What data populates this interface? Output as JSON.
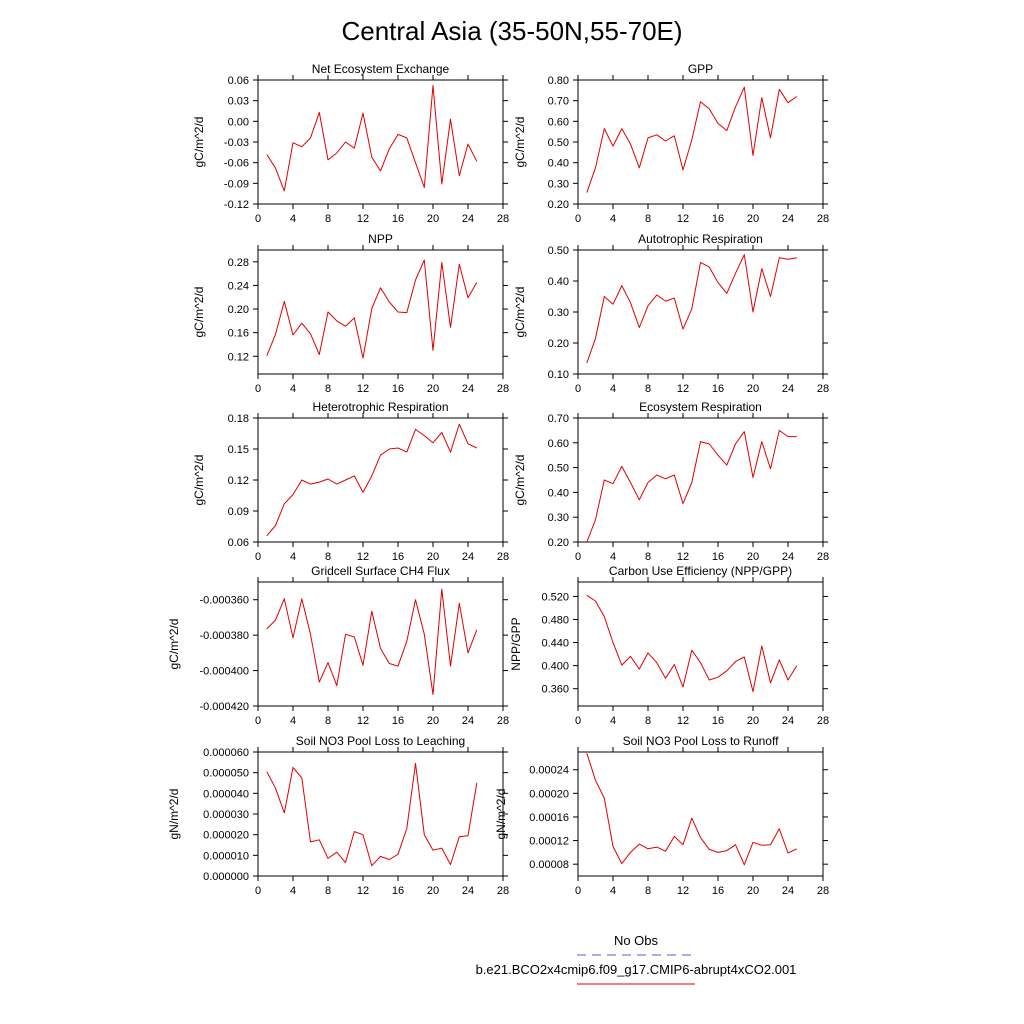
{
  "figure": {
    "title": "Central Asia (35-50N,55-70E)"
  },
  "legend": {
    "entries": [
      {
        "label": "No Obs",
        "color": "#5a5ad2",
        "dash": "dashed"
      },
      {
        "label": "b.e21.BCO2x4cmip6.f09_g17.CMIP6-abrupt4xCO2.001",
        "color": "#e00000",
        "dash": "solid"
      }
    ]
  },
  "chart_data": [
    {
      "type": "line",
      "title": "Net Ecosystem Exchange",
      "ylabel": "gC/m^2/d",
      "xlim": [
        0,
        28
      ],
      "ylim": [
        -0.12,
        0.06
      ],
      "xticks": [
        0,
        4,
        8,
        12,
        16,
        20,
        24,
        28
      ],
      "yticks": [
        "-0.12",
        "-0.09",
        "-0.06",
        "-0.03",
        "0.00",
        "0.03",
        "0.06"
      ],
      "series": [
        {
          "color": "#e00000",
          "x": [
            1,
            2,
            3,
            4,
            5,
            6,
            7,
            8,
            9,
            10,
            11,
            12,
            13,
            14,
            15,
            16,
            17,
            18,
            19,
            20,
            21,
            22,
            23,
            24,
            25
          ],
          "y": [
            -0.048,
            -0.068,
            -0.101,
            -0.031,
            -0.037,
            -0.024,
            0.013,
            -0.056,
            -0.046,
            -0.03,
            -0.039,
            0.012,
            -0.052,
            -0.072,
            -0.04,
            -0.019,
            -0.024,
            -0.06,
            -0.096,
            0.052,
            -0.091,
            0.003,
            -0.079,
            -0.033,
            -0.058
          ]
        }
      ]
    },
    {
      "type": "line",
      "title": "GPP",
      "ylabel": "gC/m^2/d",
      "xlim": [
        0,
        28
      ],
      "ylim": [
        0.2,
        0.8
      ],
      "xticks": [
        0,
        4,
        8,
        12,
        16,
        20,
        24,
        28
      ],
      "yticks": [
        "0.20",
        "0.30",
        "0.40",
        "0.50",
        "0.60",
        "0.70",
        "0.80"
      ],
      "series": [
        {
          "color": "#e00000",
          "x": [
            1,
            2,
            3,
            4,
            5,
            6,
            7,
            8,
            9,
            10,
            11,
            12,
            13,
            14,
            15,
            16,
            17,
            18,
            19,
            20,
            21,
            22,
            23,
            24,
            25
          ],
          "y": [
            0.255,
            0.375,
            0.565,
            0.48,
            0.565,
            0.49,
            0.375,
            0.52,
            0.535,
            0.505,
            0.53,
            0.365,
            0.51,
            0.695,
            0.66,
            0.59,
            0.555,
            0.67,
            0.765,
            0.435,
            0.715,
            0.52,
            0.755,
            0.69,
            0.72
          ]
        }
      ]
    },
    {
      "type": "line",
      "title": "NPP",
      "ylabel": "gC/m^2/d",
      "xlim": [
        0,
        28
      ],
      "ylim": [
        0.09,
        0.3
      ],
      "xticks": [
        0,
        4,
        8,
        12,
        16,
        20,
        24,
        28
      ],
      "yticks": [
        "0.12",
        "0.16",
        "0.20",
        "0.24",
        "0.28"
      ],
      "series": [
        {
          "color": "#e00000",
          "x": [
            1,
            2,
            3,
            4,
            5,
            6,
            7,
            8,
            9,
            10,
            11,
            12,
            13,
            14,
            15,
            16,
            17,
            18,
            19,
            20,
            21,
            22,
            23,
            24,
            25
          ],
          "y": [
            0.121,
            0.157,
            0.213,
            0.156,
            0.176,
            0.158,
            0.123,
            0.195,
            0.18,
            0.171,
            0.185,
            0.117,
            0.201,
            0.236,
            0.212,
            0.195,
            0.194,
            0.249,
            0.283,
            0.13,
            0.279,
            0.169,
            0.276,
            0.219,
            0.245
          ]
        }
      ]
    },
    {
      "type": "line",
      "title": "Autotrophic Respiration",
      "ylabel": "gC/m^2/d",
      "xlim": [
        0,
        28
      ],
      "ylim": [
        0.1,
        0.5
      ],
      "xticks": [
        0,
        4,
        8,
        12,
        16,
        20,
        24,
        28
      ],
      "yticks": [
        "0.10",
        "0.20",
        "0.30",
        "0.40",
        "0.50"
      ],
      "series": [
        {
          "color": "#e00000",
          "x": [
            1,
            2,
            3,
            4,
            5,
            6,
            7,
            8,
            9,
            10,
            11,
            12,
            13,
            14,
            15,
            16,
            17,
            18,
            19,
            20,
            21,
            22,
            23,
            24,
            25
          ],
          "y": [
            0.135,
            0.215,
            0.35,
            0.325,
            0.385,
            0.33,
            0.25,
            0.32,
            0.355,
            0.335,
            0.345,
            0.245,
            0.31,
            0.46,
            0.445,
            0.395,
            0.36,
            0.425,
            0.485,
            0.3,
            0.44,
            0.35,
            0.475,
            0.47,
            0.475
          ]
        }
      ]
    },
    {
      "type": "line",
      "title": "Heterotrophic Respiration",
      "ylabel": "gC/m^2/d",
      "xlim": [
        0,
        28
      ],
      "ylim": [
        0.06,
        0.18
      ],
      "xticks": [
        0,
        4,
        8,
        12,
        16,
        20,
        24,
        28
      ],
      "yticks": [
        "0.06",
        "0.09",
        "0.12",
        "0.15",
        "0.18"
      ],
      "series": [
        {
          "color": "#e00000",
          "x": [
            1,
            2,
            3,
            4,
            5,
            6,
            7,
            8,
            9,
            10,
            11,
            12,
            13,
            14,
            15,
            16,
            17,
            18,
            19,
            20,
            21,
            22,
            23,
            24,
            25
          ],
          "y": [
            0.066,
            0.076,
            0.097,
            0.106,
            0.12,
            0.116,
            0.118,
            0.121,
            0.116,
            0.12,
            0.124,
            0.108,
            0.124,
            0.144,
            0.15,
            0.151,
            0.147,
            0.169,
            0.163,
            0.156,
            0.166,
            0.147,
            0.174,
            0.155,
            0.151
          ]
        }
      ]
    },
    {
      "type": "line",
      "title": "Ecosystem Respiration",
      "ylabel": "gC/m^2/d",
      "xlim": [
        0,
        28
      ],
      "ylim": [
        0.2,
        0.7
      ],
      "xticks": [
        0,
        4,
        8,
        12,
        16,
        20,
        24,
        28
      ],
      "yticks": [
        "0.20",
        "0.30",
        "0.40",
        "0.50",
        "0.60",
        "0.70"
      ],
      "series": [
        {
          "color": "#e00000",
          "x": [
            1,
            2,
            3,
            4,
            5,
            6,
            7,
            8,
            9,
            10,
            11,
            12,
            13,
            14,
            15,
            16,
            17,
            18,
            19,
            20,
            21,
            22,
            23,
            24,
            25
          ],
          "y": [
            0.2,
            0.29,
            0.45,
            0.435,
            0.505,
            0.44,
            0.37,
            0.44,
            0.47,
            0.455,
            0.47,
            0.355,
            0.44,
            0.605,
            0.595,
            0.55,
            0.51,
            0.595,
            0.645,
            0.46,
            0.605,
            0.495,
            0.65,
            0.625,
            0.625
          ]
        }
      ]
    },
    {
      "type": "line",
      "title": "Gridcell Surface CH4 Flux",
      "ylabel": "gC/m^2/d",
      "xlim": [
        0,
        28
      ],
      "ylim": [
        -0.00042,
        -0.00035
      ],
      "xticks": [
        0,
        4,
        8,
        12,
        16,
        20,
        24,
        28
      ],
      "yticks": [
        "-0.000420",
        "-0.000400",
        "-0.000380",
        "-0.000360"
      ],
      "series": [
        {
          "color": "#e00000",
          "x": [
            1,
            2,
            3,
            4,
            5,
            6,
            7,
            8,
            9,
            10,
            11,
            12,
            13,
            14,
            15,
            16,
            17,
            18,
            19,
            20,
            21,
            22,
            23,
            24,
            25
          ],
          "y": [
            -0.0003765,
            -0.0003715,
            -0.0003595,
            -0.0003815,
            -0.0003595,
            -0.0003795,
            -0.0004065,
            -0.0003955,
            -0.0004085,
            -0.0003795,
            -0.000381,
            -0.000397,
            -0.0003665,
            -0.0003875,
            -0.000396,
            -0.0003975,
            -0.0003835,
            -0.00036,
            -0.0003795,
            -0.0004135,
            -0.000354,
            -0.0003975,
            -0.000362,
            -0.00039,
            -0.000377
          ]
        }
      ]
    },
    {
      "type": "line",
      "title": "Carbon Use Efficiency (NPP/GPP)",
      "ylabel": "NPP/GPP",
      "xlim": [
        0,
        28
      ],
      "ylim": [
        0.33,
        0.545
      ],
      "xticks": [
        0,
        4,
        8,
        12,
        16,
        20,
        24,
        28
      ],
      "yticks": [
        "0.360",
        "0.400",
        "0.440",
        "0.480",
        "0.520"
      ],
      "series": [
        {
          "color": "#e00000",
          "x": [
            1,
            2,
            3,
            4,
            5,
            6,
            7,
            8,
            9,
            10,
            11,
            12,
            13,
            14,
            15,
            16,
            17,
            18,
            19,
            20,
            21,
            22,
            23,
            24,
            25
          ],
          "y": [
            0.522,
            0.512,
            0.485,
            0.44,
            0.401,
            0.416,
            0.394,
            0.422,
            0.405,
            0.378,
            0.402,
            0.363,
            0.427,
            0.405,
            0.375,
            0.38,
            0.391,
            0.407,
            0.415,
            0.355,
            0.434,
            0.37,
            0.41,
            0.375,
            0.4
          ]
        }
      ]
    },
    {
      "type": "line",
      "title": "Soil NO3 Pool Loss to Leaching",
      "ylabel": "gN/m^2/d",
      "xlim": [
        0,
        28
      ],
      "ylim": [
        0,
        6e-05
      ],
      "xticks": [
        0,
        4,
        8,
        12,
        16,
        20,
        24,
        28
      ],
      "yticks": [
        "0.000000",
        "0.000010",
        "0.000020",
        "0.000030",
        "0.000040",
        "0.000050",
        "0.000060"
      ],
      "series": [
        {
          "color": "#e00000",
          "x": [
            1,
            2,
            3,
            4,
            5,
            6,
            7,
            8,
            9,
            10,
            11,
            12,
            13,
            14,
            15,
            16,
            17,
            18,
            19,
            20,
            21,
            22,
            23,
            24,
            25
          ],
          "y": [
            5.05e-05,
            4.25e-05,
            3.05e-05,
            5.25e-05,
            4.75e-05,
            1.65e-05,
            1.75e-05,
            8.5e-06,
            1.15e-05,
            6.5e-06,
            2.15e-05,
            2e-05,
            5e-06,
            9.5e-06,
            8e-06,
            1.05e-05,
            2.3e-05,
            5.45e-05,
            2e-05,
            1.25e-05,
            1.35e-05,
            5.5e-06,
            1.9e-05,
            1.95e-05,
            4.5e-05
          ]
        }
      ]
    },
    {
      "type": "line",
      "title": "Soil NO3 Pool Loss to Runoff",
      "ylabel": "gN/m^2/d",
      "xlim": [
        0,
        28
      ],
      "ylim": [
        6e-05,
        0.00027
      ],
      "xticks": [
        0,
        4,
        8,
        12,
        16,
        20,
        24,
        28
      ],
      "yticks": [
        "0.00008",
        "0.00012",
        "0.00016",
        "0.00020",
        "0.00024"
      ],
      "series": [
        {
          "color": "#e00000",
          "x": [
            1,
            2,
            3,
            4,
            5,
            6,
            7,
            8,
            9,
            10,
            11,
            12,
            13,
            14,
            15,
            16,
            17,
            18,
            19,
            20,
            21,
            22,
            23,
            24,
            25
          ],
          "y": [
            0.000268,
            0.000222,
            0.000192,
            0.00011,
            8.1e-05,
            0.0001,
            0.000114,
            0.000106,
            0.000109,
            0.000102,
            0.000127,
            0.000113,
            0.000158,
            0.000125,
            0.000105,
            0.0001,
            0.000103,
            0.000113,
            7.9e-05,
            0.000117,
            0.000112,
            0.000113,
            0.00014,
            9.9e-05,
            0.000106
          ]
        }
      ]
    }
  ]
}
